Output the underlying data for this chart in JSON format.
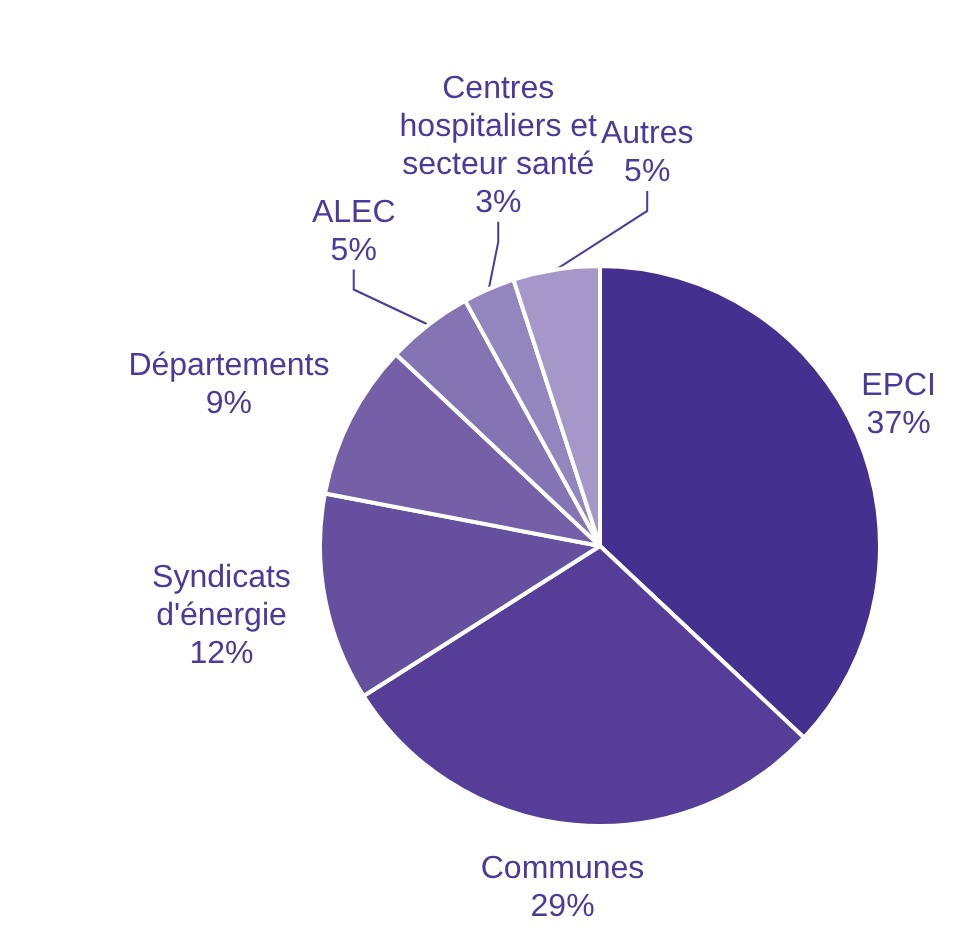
{
  "chart_data": {
    "type": "pie",
    "categories": [
      "EPCI",
      "Communes",
      "Syndicats d'énergie",
      "Départements",
      "ALEC",
      "Centres hospitaliers et secteur santé",
      "Autres"
    ],
    "values": [
      37,
      29,
      12,
      9,
      5,
      3,
      5
    ],
    "value_labels": [
      "37%",
      "29%",
      "12%",
      "9%",
      "5%",
      "3%",
      "5%"
    ],
    "colors": [
      "#43308f",
      "#553d98",
      "#6550a0",
      "#7560a8",
      "#8574b4",
      "#9385bd",
      "#a597c8"
    ]
  }
}
